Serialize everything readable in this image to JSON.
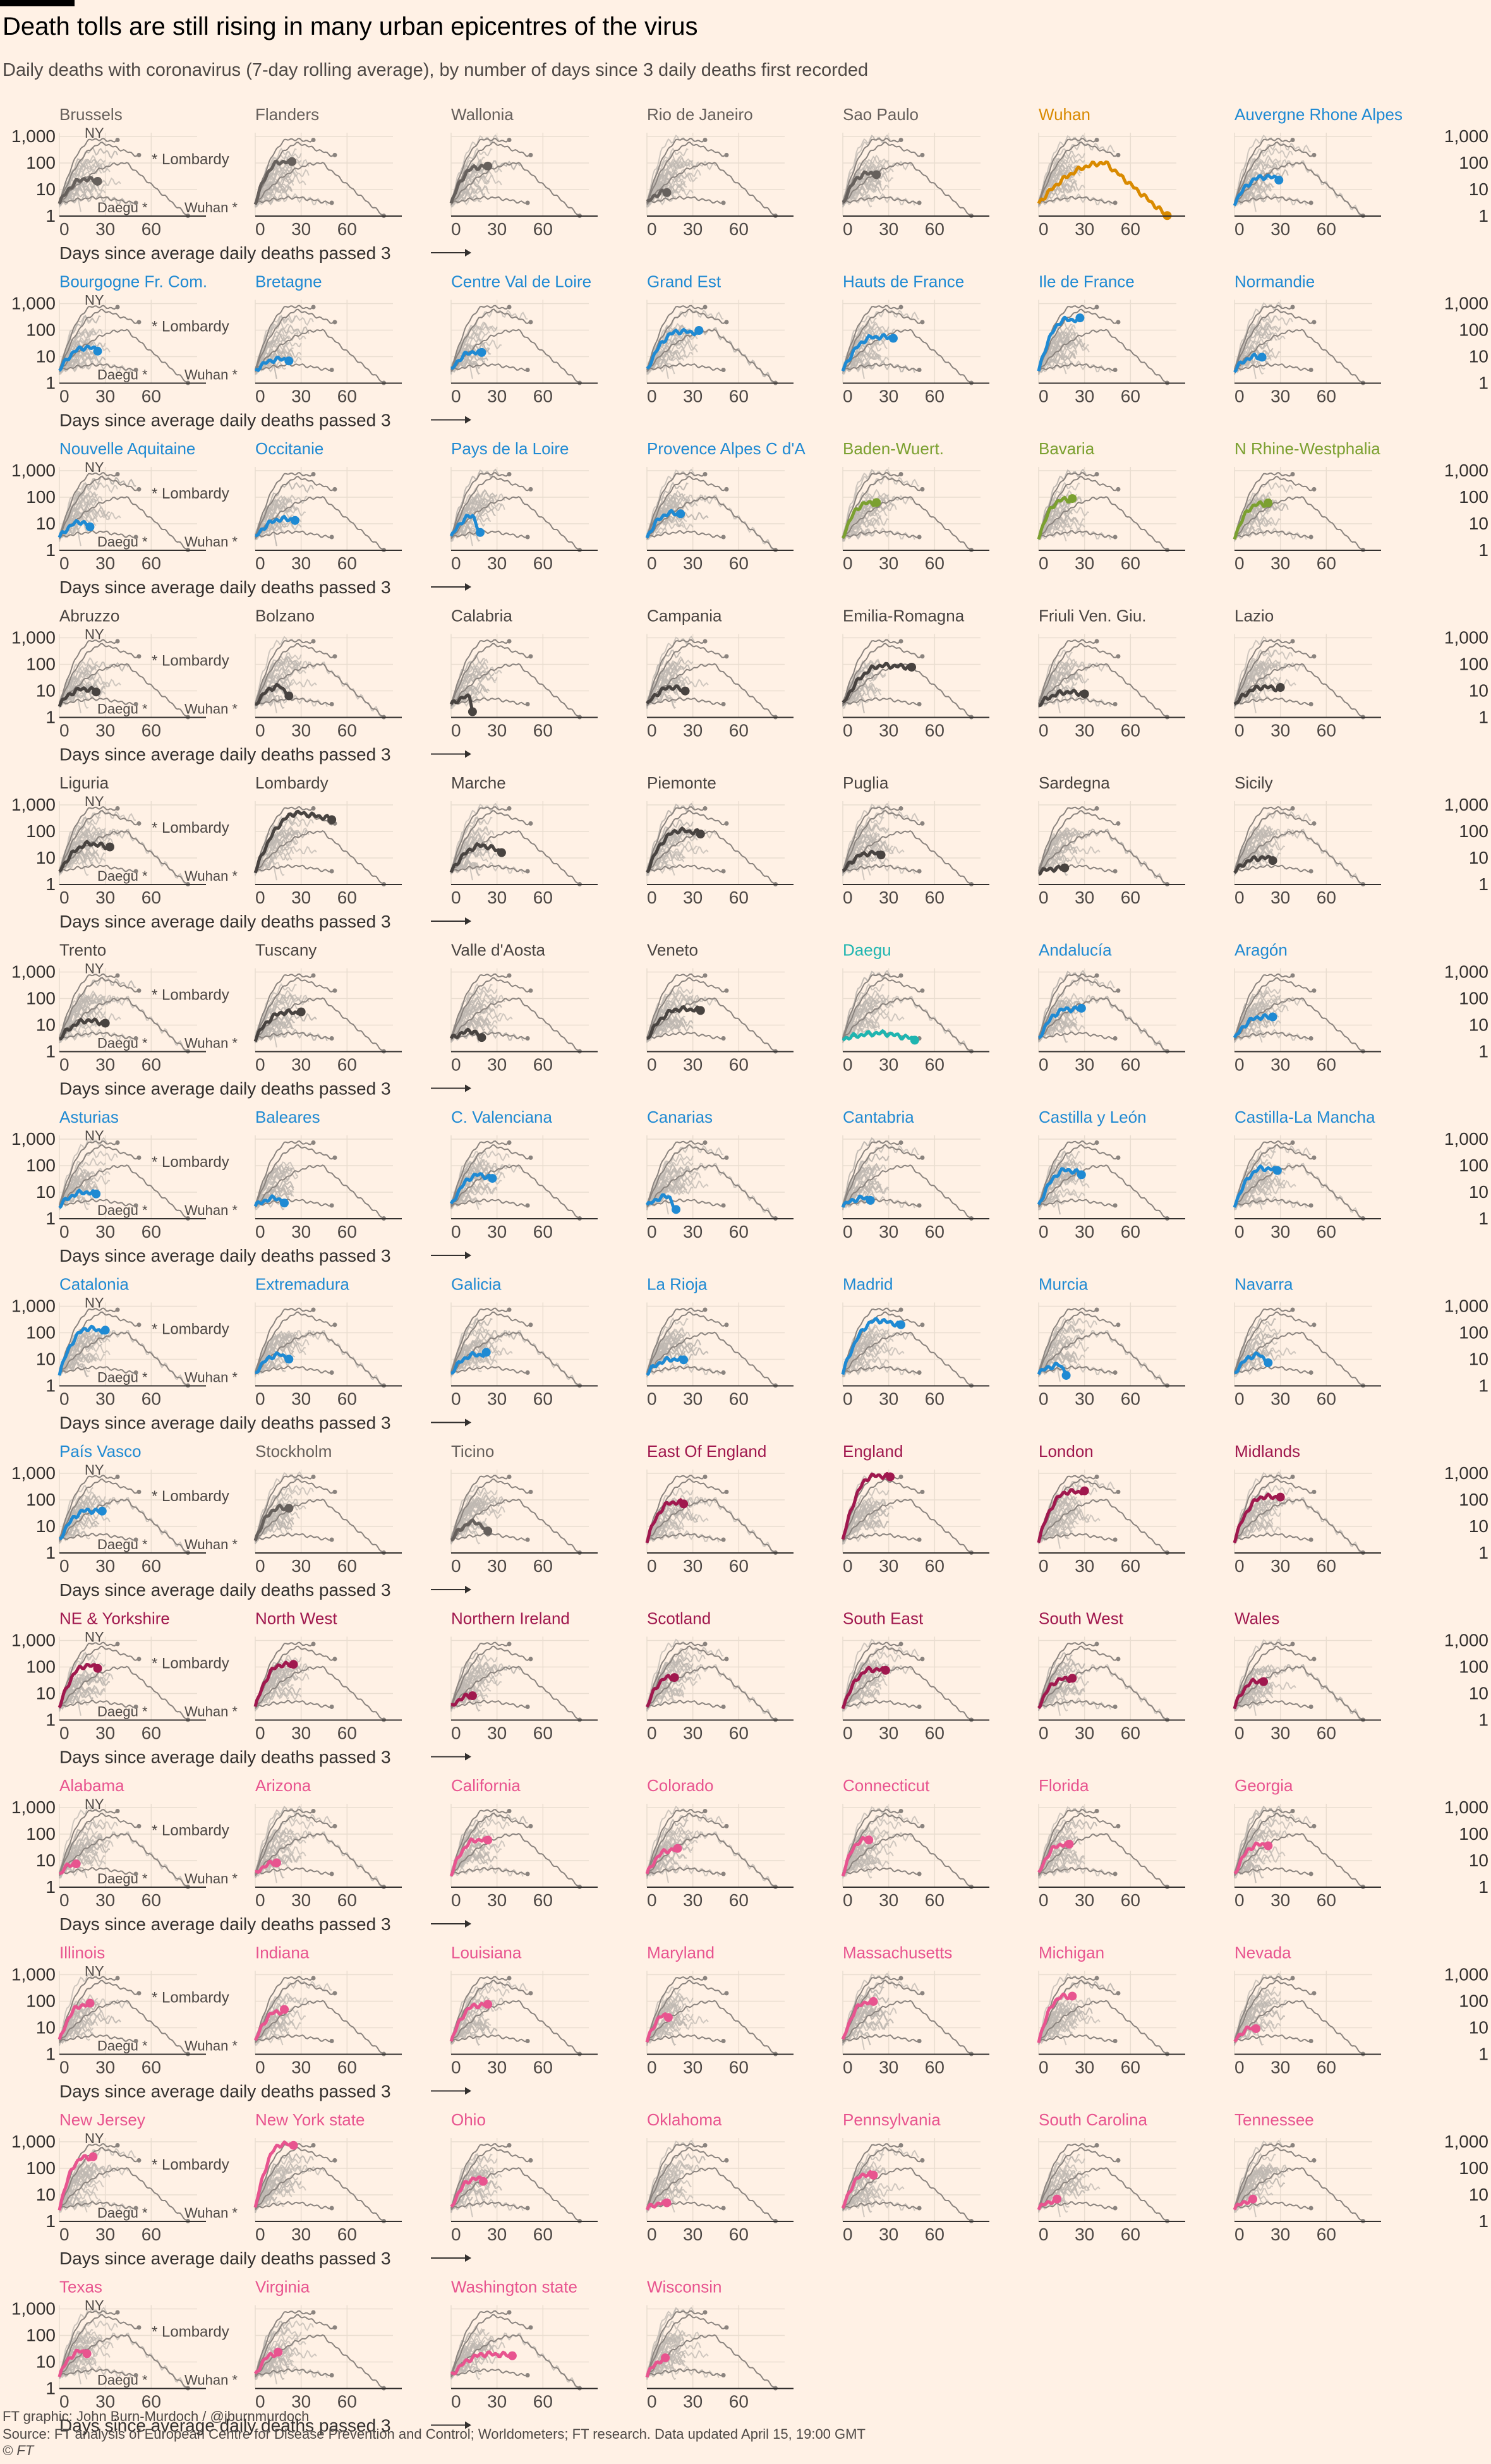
{
  "title": "Death tolls are still rising in many urban epicentres of the virus",
  "subtitle": "Daily deaths with coronavirus (7-day rolling average), by number of days since 3 daily deaths first recorded",
  "footer": {
    "credit": "FT graphic: John Burn-Murdoch / @jburnmurdoch",
    "source": "Source: FT analysis of European Centre for Disease Prevention and Control; Worldometers; FT research. Data updated April 15, 19:00 GMT",
    "copyright": "© FT"
  },
  "chart_data": {
    "type": "line",
    "layout": "small-multiples",
    "xlabel": "Days since average daily deaths passed 3",
    "y_scale": "log",
    "yticks": [
      "1",
      "10",
      "100",
      "1,000"
    ],
    "xticks": [
      "0",
      "30",
      "60"
    ],
    "reference_labels": [
      "NY",
      "Lombardy",
      "Daegu",
      "Wuhan"
    ],
    "colors": {
      "belgium": "#66605c",
      "brazil": "#66605c",
      "china": "#d98a00",
      "france": "#1f8ad3",
      "germany": "#7ba030",
      "italy": "#484340",
      "korea": "#1fb5b0",
      "spain": "#1f8ad3",
      "other": "#66605c",
      "uk": "#a0184e",
      "us": "#e8548f",
      "background": "#bfb8b2"
    },
    "panels": [
      {
        "name": "Brussels",
        "group": "belgium",
        "days": 25,
        "peak": 25,
        "end": 20
      },
      {
        "name": "Flanders",
        "group": "belgium",
        "days": 24,
        "peak": 110,
        "end": 110
      },
      {
        "name": "Wallonia",
        "group": "belgium",
        "days": 24,
        "peak": 70,
        "end": 70
      },
      {
        "name": "Rio de Janeiro",
        "group": "brazil",
        "days": 13,
        "peak": 8,
        "end": 8
      },
      {
        "name": "Sao Paulo",
        "group": "brazil",
        "days": 22,
        "peak": 40,
        "end": 40
      },
      {
        "name": "Wuhan",
        "group": "china",
        "days": 84,
        "peak": 100,
        "end": 1
      },
      {
        "name": "Auvergne Rhone Alpes",
        "group": "france",
        "days": 29,
        "peak": 30,
        "end": 28
      },
      {
        "name": "Bourgogne Fr. Com.",
        "group": "france",
        "days": 25,
        "peak": 22,
        "end": 20
      },
      {
        "name": "Bretagne",
        "group": "france",
        "days": 22,
        "peak": 8,
        "end": 8
      },
      {
        "name": "Centre Val de Loire",
        "group": "france",
        "days": 20,
        "peak": 15,
        "end": 14
      },
      {
        "name": "Grand Est",
        "group": "france",
        "days": 34,
        "peak": 90,
        "end": 80
      },
      {
        "name": "Hauts de France",
        "group": "france",
        "days": 33,
        "peak": 55,
        "end": 55
      },
      {
        "name": "Ile de France",
        "group": "france",
        "days": 27,
        "peak": 250,
        "end": 240
      },
      {
        "name": "Normandie",
        "group": "france",
        "days": 18,
        "peak": 10,
        "end": 9
      },
      {
        "name": "Nouvelle Aquitaine",
        "group": "france",
        "days": 20,
        "peak": 12,
        "end": 7
      },
      {
        "name": "Occitanie",
        "group": "france",
        "days": 26,
        "peak": 15,
        "end": 15
      },
      {
        "name": "Pays de la Loire",
        "group": "france",
        "days": 19,
        "peak": 20,
        "end": 4
      },
      {
        "name": "Provence Alpes C d'A",
        "group": "france",
        "days": 22,
        "peak": 25,
        "end": 25
      },
      {
        "name": "Baden-Wuert.",
        "group": "germany",
        "days": 22,
        "peak": 60,
        "end": 60
      },
      {
        "name": "Bavaria",
        "group": "germany",
        "days": 22,
        "peak": 80,
        "end": 80
      },
      {
        "name": "N Rhine-Westphalia",
        "group": "germany",
        "days": 22,
        "peak": 55,
        "end": 55
      },
      {
        "name": "Abruzzo",
        "group": "italy",
        "days": 24,
        "peak": 12,
        "end": 10
      },
      {
        "name": "Bolzano",
        "group": "italy",
        "days": 22,
        "peak": 15,
        "end": 7
      },
      {
        "name": "Calabria",
        "group": "italy",
        "days": 14,
        "peak": 6,
        "end": 2
      },
      {
        "name": "Campania",
        "group": "italy",
        "days": 25,
        "peak": 14,
        "end": 10
      },
      {
        "name": "Emilia-Romagna",
        "group": "italy",
        "days": 45,
        "peak": 90,
        "end": 80
      },
      {
        "name": "Friuli Ven. Giu.",
        "group": "italy",
        "days": 30,
        "peak": 9,
        "end": 8
      },
      {
        "name": "Lazio",
        "group": "italy",
        "days": 30,
        "peak": 14,
        "end": 12
      },
      {
        "name": "Liguria",
        "group": "italy",
        "days": 33,
        "peak": 35,
        "end": 25
      },
      {
        "name": "Lombardy",
        "group": "italy",
        "days": 50,
        "peak": 500,
        "end": 300
      },
      {
        "name": "Marche",
        "group": "italy",
        "days": 33,
        "peak": 30,
        "end": 18
      },
      {
        "name": "Piemonte",
        "group": "italy",
        "days": 35,
        "peak": 110,
        "end": 90
      },
      {
        "name": "Puglia",
        "group": "italy",
        "days": 25,
        "peak": 15,
        "end": 15
      },
      {
        "name": "Sardegna",
        "group": "italy",
        "days": 17,
        "peak": 4,
        "end": 4
      },
      {
        "name": "Sicily",
        "group": "italy",
        "days": 25,
        "peak": 10,
        "end": 10
      },
      {
        "name": "Trento",
        "group": "italy",
        "days": 30,
        "peak": 15,
        "end": 12
      },
      {
        "name": "Tuscany",
        "group": "italy",
        "days": 30,
        "peak": 30,
        "end": 30
      },
      {
        "name": "Valle d'Aosta",
        "group": "italy",
        "days": 20,
        "peak": 6,
        "end": 3
      },
      {
        "name": "Veneto",
        "group": "italy",
        "days": 35,
        "peak": 40,
        "end": 38
      },
      {
        "name": "Daegu",
        "group": "korea",
        "days": 47,
        "peak": 5,
        "end": 3
      },
      {
        "name": "Andalucía",
        "group": "spain",
        "days": 28,
        "peak": 40,
        "end": 40
      },
      {
        "name": "Aragón",
        "group": "spain",
        "days": 25,
        "peak": 20,
        "end": 20
      },
      {
        "name": "Asturias",
        "group": "spain",
        "days": 24,
        "peak": 10,
        "end": 9
      },
      {
        "name": "Baleares",
        "group": "spain",
        "days": 19,
        "peak": 6,
        "end": 4
      },
      {
        "name": "C. Valenciana",
        "group": "spain",
        "days": 27,
        "peak": 45,
        "end": 35
      },
      {
        "name": "Canarias",
        "group": "spain",
        "days": 19,
        "peak": 7,
        "end": 2
      },
      {
        "name": "Cantabria",
        "group": "spain",
        "days": 18,
        "peak": 6,
        "end": 6
      },
      {
        "name": "Castilla y León",
        "group": "spain",
        "days": 28,
        "peak": 70,
        "end": 50
      },
      {
        "name": "Castilla-La Mancha",
        "group": "spain",
        "days": 28,
        "peak": 80,
        "end": 70
      },
      {
        "name": "Catalonia",
        "group": "spain",
        "days": 30,
        "peak": 150,
        "end": 110
      },
      {
        "name": "Extremadura",
        "group": "spain",
        "days": 22,
        "peak": 15,
        "end": 11
      },
      {
        "name": "Galicia",
        "group": "spain",
        "days": 23,
        "peak": 15,
        "end": 15
      },
      {
        "name": "La Rioja",
        "group": "spain",
        "days": 24,
        "peak": 10,
        "end": 10
      },
      {
        "name": "Madrid",
        "group": "spain",
        "days": 38,
        "peak": 300,
        "end": 200
      },
      {
        "name": "Murcia",
        "group": "spain",
        "days": 18,
        "peak": 6,
        "end": 3
      },
      {
        "name": "Navarra",
        "group": "spain",
        "days": 22,
        "peak": 15,
        "end": 8
      },
      {
        "name": "País Vasco",
        "group": "spain",
        "days": 28,
        "peak": 40,
        "end": 35
      },
      {
        "name": "Stockholm",
        "group": "other",
        "days": 22,
        "peak": 50,
        "end": 50
      },
      {
        "name": "Ticino",
        "group": "other",
        "days": 24,
        "peak": 15,
        "end": 6
      },
      {
        "name": "East Of England",
        "group": "uk",
        "days": 24,
        "peak": 80,
        "end": 80
      },
      {
        "name": "England",
        "group": "uk",
        "days": 31,
        "peak": 800,
        "end": 800
      },
      {
        "name": "London",
        "group": "uk",
        "days": 30,
        "peak": 200,
        "end": 200
      },
      {
        "name": "Midlands",
        "group": "uk",
        "days": 30,
        "peak": 130,
        "end": 130
      },
      {
        "name": "NE & Yorkshire",
        "group": "uk",
        "days": 25,
        "peak": 110,
        "end": 110
      },
      {
        "name": "North West",
        "group": "uk",
        "days": 25,
        "peak": 120,
        "end": 120
      },
      {
        "name": "Northern Ireland",
        "group": "uk",
        "days": 14,
        "peak": 8,
        "end": 8
      },
      {
        "name": "Scotland",
        "group": "uk",
        "days": 18,
        "peak": 40,
        "end": 40
      },
      {
        "name": "South East",
        "group": "uk",
        "days": 28,
        "peak": 80,
        "end": 80
      },
      {
        "name": "South West",
        "group": "uk",
        "days": 22,
        "peak": 35,
        "end": 35
      },
      {
        "name": "Wales",
        "group": "uk",
        "days": 19,
        "peak": 30,
        "end": 30
      },
      {
        "name": "Alabama",
        "group": "us",
        "days": 11,
        "peak": 8,
        "end": 8
      },
      {
        "name": "Arizona",
        "group": "us",
        "days": 14,
        "peak": 8,
        "end": 8
      },
      {
        "name": "California",
        "group": "us",
        "days": 24,
        "peak": 60,
        "end": 60
      },
      {
        "name": "Colorado",
        "group": "us",
        "days": 20,
        "peak": 25,
        "end": 25
      },
      {
        "name": "Connecticut",
        "group": "us",
        "days": 17,
        "peak": 60,
        "end": 60
      },
      {
        "name": "Florida",
        "group": "us",
        "days": 20,
        "peak": 40,
        "end": 40
      },
      {
        "name": "Georgia",
        "group": "us",
        "days": 22,
        "peak": 40,
        "end": 40
      },
      {
        "name": "Illinois",
        "group": "us",
        "days": 20,
        "peak": 70,
        "end": 70
      },
      {
        "name": "Indiana",
        "group": "us",
        "days": 19,
        "peak": 40,
        "end": 40
      },
      {
        "name": "Louisiana",
        "group": "us",
        "days": 24,
        "peak": 70,
        "end": 70
      },
      {
        "name": "Maryland",
        "group": "us",
        "days": 14,
        "peak": 30,
        "end": 30
      },
      {
        "name": "Massachusetts",
        "group": "us",
        "days": 20,
        "peak": 90,
        "end": 90
      },
      {
        "name": "Michigan",
        "group": "us",
        "days": 22,
        "peak": 150,
        "end": 150
      },
      {
        "name": "Nevada",
        "group": "us",
        "days": 14,
        "peak": 10,
        "end": 10
      },
      {
        "name": "New Jersey",
        "group": "us",
        "days": 22,
        "peak": 250,
        "end": 250
      },
      {
        "name": "New York state",
        "group": "us",
        "days": 25,
        "peak": 800,
        "end": 800
      },
      {
        "name": "Ohio",
        "group": "us",
        "days": 21,
        "peak": 40,
        "end": 40
      },
      {
        "name": "Oklahoma",
        "group": "us",
        "days": 13,
        "peak": 5,
        "end": 5
      },
      {
        "name": "Pennsylvania",
        "group": "us",
        "days": 20,
        "peak": 60,
        "end": 60
      },
      {
        "name": "South Carolina",
        "group": "us",
        "days": 12,
        "peak": 6,
        "end": 6
      },
      {
        "name": "Tennessee",
        "group": "us",
        "days": 12,
        "peak": 6,
        "end": 6
      },
      {
        "name": "Texas",
        "group": "us",
        "days": 18,
        "peak": 25,
        "end": 25
      },
      {
        "name": "Virginia",
        "group": "us",
        "days": 15,
        "peak": 20,
        "end": 20
      },
      {
        "name": "Washington state",
        "group": "us",
        "days": 40,
        "peak": 20,
        "end": 18
      },
      {
        "name": "Wisconsin",
        "group": "us",
        "days": 12,
        "peak": 12,
        "end": 12
      }
    ]
  }
}
